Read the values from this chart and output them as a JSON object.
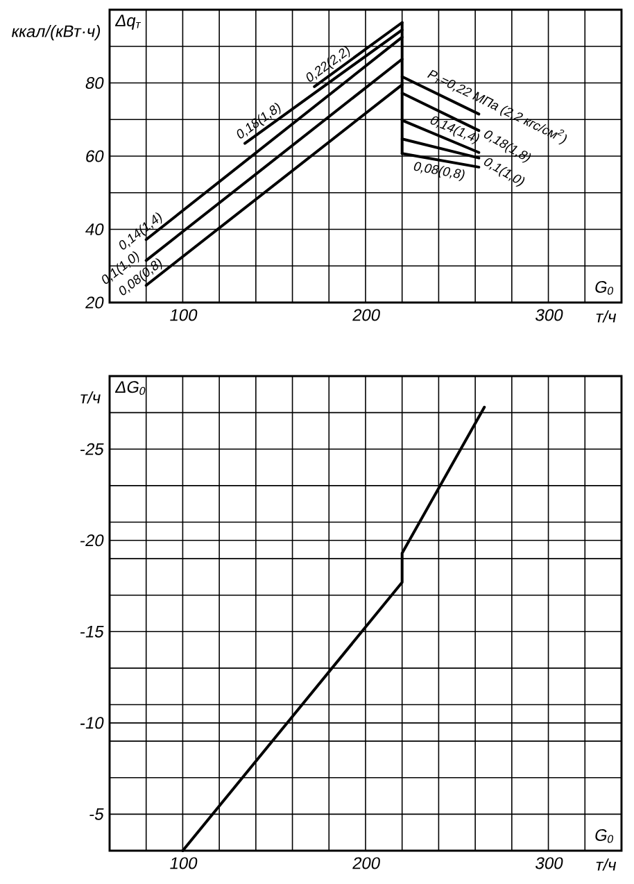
{
  "chart_data": [
    {
      "type": "line",
      "xlabel": "G$_{0}$",
      "ylabel": "Δq$_{т}$",
      "annotations": [
        "ккал/(кВт·ч)",
        "т/ч"
      ],
      "xlim": [
        60,
        340
      ],
      "xticks": [
        {
          "value": 80,
          "label": null
        },
        100,
        {
          "value": 120,
          "label": null
        },
        {
          "value": 140,
          "label": null
        },
        {
          "value": 160,
          "label": null
        },
        {
          "value": 180,
          "label": null
        },
        200,
        {
          "value": 220,
          "label": null
        },
        {
          "value": 240,
          "label": null
        },
        {
          "value": 260,
          "label": null
        },
        {
          "value": 280,
          "label": null
        },
        300,
        {
          "value": 320,
          "label": null
        }
      ],
      "ylim": [
        20,
        100
      ],
      "yticks": [
        20,
        {
          "value": 30,
          "label": null
        },
        40,
        {
          "value": 50,
          "label": null
        },
        60,
        {
          "value": 70,
          "label": null
        },
        80,
        {
          "value": 90,
          "label": null
        }
      ],
      "grid": true,
      "series": [
        {
          "name": "0,08(0,8)",
          "color": "#000000",
          "x": [
            80,
            220
          ],
          "values": [
            24.7,
            79.5
          ]
        },
        {
          "name": "0,1(1,0)",
          "color": "#000000",
          "x": [
            80,
            220
          ],
          "values": [
            31.5,
            86.5
          ]
        },
        {
          "name": "0,14(1,4)",
          "color": "#000000",
          "x": [
            80,
            220
          ],
          "values": [
            37.2,
            92.5
          ]
        },
        {
          "name": "0,18(1,8)",
          "color": "#000000",
          "x": [
            134,
            220
          ],
          "values": [
            63.5,
            94.5
          ]
        },
        {
          "name": "0,22(2,2)",
          "color": "#000000",
          "x": [
            172,
            220
          ],
          "values": [
            79,
            96.5
          ]
        },
        {
          "name": "P$_{т}$=0,22 МПа (2,2 кгс/см$^{2}$)",
          "color": "#000000",
          "x": [
            220,
            262
          ],
          "values": [
            81.7,
            71.5
          ]
        },
        {
          "name": "0,18(1,8)",
          "color": "#000000",
          "x": [
            220,
            262
          ],
          "values": [
            77.2,
            67
          ]
        },
        {
          "name": "0,14(1,4)",
          "color": "#000000",
          "x": [
            220,
            262
          ],
          "values": [
            69.8,
            61
          ]
        },
        {
          "name": "0,1(1,0)",
          "color": "#000000",
          "x": [
            220,
            262
          ],
          "values": [
            64.7,
            59.5
          ]
        },
        {
          "name": "0,08(0,8)",
          "color": "#000000",
          "x": [
            220,
            262
          ],
          "values": [
            60.7,
            57
          ]
        },
        {
          "color": "#000000",
          "x": [
            220,
            220
          ],
          "values": [
            60.7,
            96.5
          ]
        }
      ]
    },
    {
      "type": "line",
      "xlabel": "G$_{0}$",
      "ylabel": "ΔG$_{0}$",
      "annotations": [
        "т/ч",
        "т/ч"
      ],
      "xlim": [
        60,
        340
      ],
      "xticks": [
        {
          "value": 80,
          "label": null
        },
        100,
        {
          "value": 120,
          "label": null
        },
        {
          "value": 140,
          "label": null
        },
        {
          "value": 160,
          "label": null
        },
        {
          "value": 180,
          "label": null
        },
        200,
        {
          "value": 220,
          "label": null
        },
        {
          "value": 240,
          "label": null
        },
        {
          "value": 260,
          "label": null
        },
        {
          "value": 280,
          "label": null
        },
        300,
        {
          "value": 320,
          "label": null
        }
      ],
      "ylim": [
        -3,
        -29
      ],
      "yticks": [
        {
          "value": -27,
          "label": null
        },
        -25,
        {
          "value": -23,
          "label": null
        },
        {
          "value": -21,
          "label": null
        },
        -20,
        {
          "value": -19,
          "label": null
        },
        {
          "value": -17,
          "label": null
        },
        -15,
        {
          "value": -13,
          "label": null
        },
        {
          "value": -11,
          "label": null
        },
        -10,
        {
          "value": -9,
          "label": null
        },
        {
          "value": -7,
          "label": null
        },
        -5
      ],
      "grid": true,
      "series": [
        {
          "color": "#000000",
          "x": [
            100,
            220,
            220,
            265
          ],
          "values": [
            -3,
            -17.7,
            -19.3,
            -27.3
          ]
        }
      ]
    }
  ]
}
